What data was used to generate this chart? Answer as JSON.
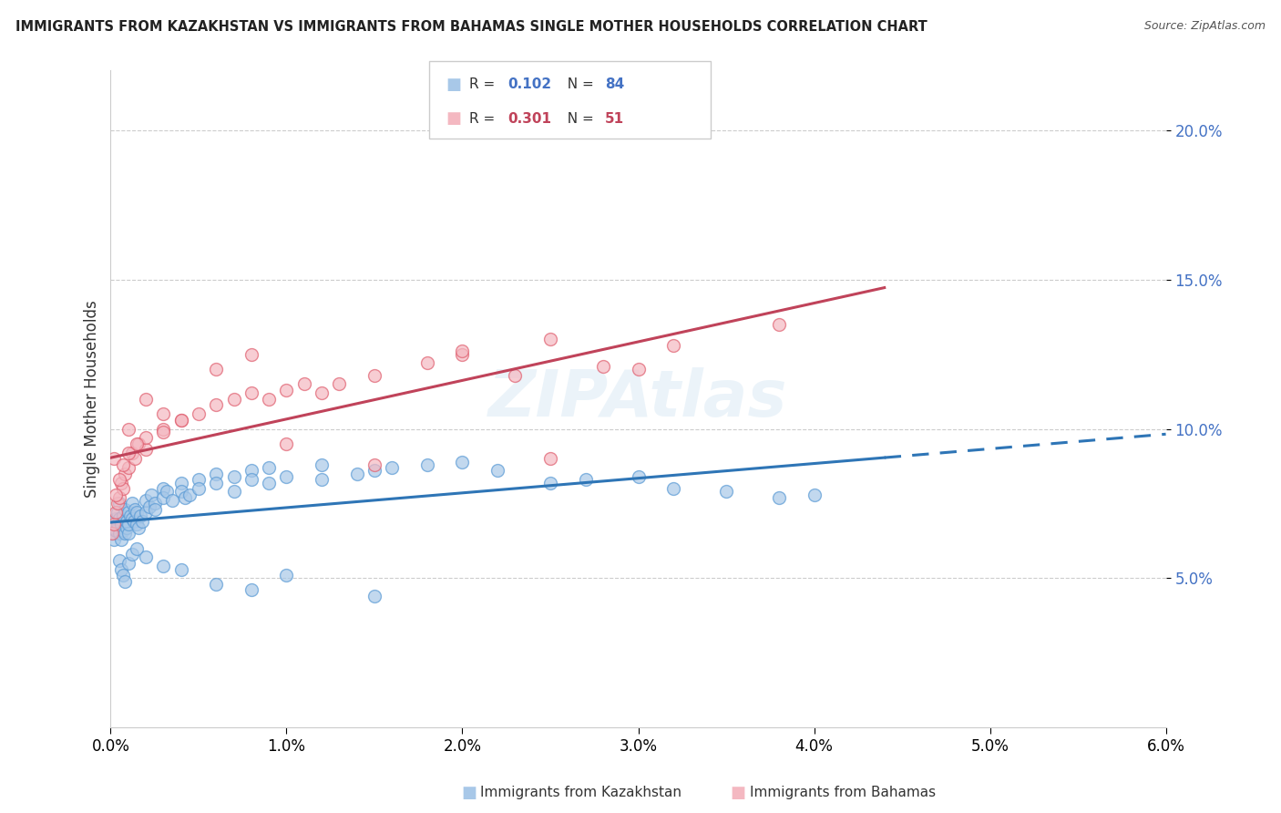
{
  "title": "IMMIGRANTS FROM KAZAKHSTAN VS IMMIGRANTS FROM BAHAMAS SINGLE MOTHER HOUSEHOLDS CORRELATION CHART",
  "source": "Source: ZipAtlas.com",
  "ylabel": "Single Mother Households",
  "series": [
    {
      "name": "Immigrants from Kazakhstan",
      "R": 0.102,
      "N": 84,
      "color": "#a8c8e8",
      "edge_color": "#5b9bd5",
      "line_color": "#2e75b6"
    },
    {
      "name": "Immigrants from Bahamas",
      "R": 0.301,
      "N": 51,
      "color": "#f4b8c1",
      "edge_color": "#e06070",
      "line_color": "#c0435a"
    }
  ],
  "xlim": [
    0.0,
    0.06
  ],
  "ylim": [
    0.0,
    0.22
  ],
  "yticks": [
    0.05,
    0.1,
    0.15,
    0.2
  ],
  "ytick_labels": [
    "5.0%",
    "10.0%",
    "15.0%",
    "20.0%"
  ],
  "xticks": [
    0.0,
    0.01,
    0.02,
    0.03,
    0.04,
    0.05,
    0.06
  ],
  "xtick_labels": [
    "0.0%",
    "1.0%",
    "2.0%",
    "3.0%",
    "4.0%",
    "5.0%",
    "6.0%"
  ],
  "background_color": "#ffffff",
  "grid_color": "#cccccc",
  "watermark": "ZIPAtlas",
  "kaz_line_solid_end": 0.044,
  "kaz_line_dash_start": 0.044,
  "kaz_line_end": 0.06,
  "bah_line_start": 0.0,
  "bah_line_end": 0.044,
  "kazakh_x": [
    0.0001,
    0.0002,
    0.0003,
    0.0003,
    0.0004,
    0.0004,
    0.0005,
    0.0005,
    0.0005,
    0.0006,
    0.0006,
    0.0007,
    0.0007,
    0.0008,
    0.0008,
    0.0009,
    0.0009,
    0.001,
    0.001,
    0.001,
    0.0011,
    0.0012,
    0.0012,
    0.0013,
    0.0014,
    0.0015,
    0.0015,
    0.0016,
    0.0017,
    0.0018,
    0.002,
    0.002,
    0.0022,
    0.0023,
    0.0025,
    0.0025,
    0.003,
    0.003,
    0.0032,
    0.0035,
    0.004,
    0.004,
    0.0042,
    0.0045,
    0.005,
    0.005,
    0.006,
    0.006,
    0.007,
    0.007,
    0.008,
    0.008,
    0.009,
    0.009,
    0.01,
    0.012,
    0.012,
    0.014,
    0.015,
    0.016,
    0.018,
    0.02,
    0.022,
    0.025,
    0.027,
    0.03,
    0.032,
    0.035,
    0.038,
    0.04,
    0.0005,
    0.0006,
    0.0007,
    0.0008,
    0.001,
    0.0012,
    0.0015,
    0.002,
    0.003,
    0.004,
    0.006,
    0.008,
    0.01,
    0.015
  ],
  "kazakh_y": [
    0.065,
    0.063,
    0.07,
    0.066,
    0.068,
    0.072,
    0.065,
    0.07,
    0.075,
    0.063,
    0.068,
    0.071,
    0.066,
    0.065,
    0.073,
    0.067,
    0.069,
    0.065,
    0.068,
    0.072,
    0.071,
    0.07,
    0.075,
    0.069,
    0.073,
    0.068,
    0.072,
    0.067,
    0.071,
    0.069,
    0.072,
    0.076,
    0.074,
    0.078,
    0.075,
    0.073,
    0.08,
    0.077,
    0.079,
    0.076,
    0.082,
    0.079,
    0.077,
    0.078,
    0.083,
    0.08,
    0.085,
    0.082,
    0.079,
    0.084,
    0.086,
    0.083,
    0.082,
    0.087,
    0.084,
    0.083,
    0.088,
    0.085,
    0.086,
    0.087,
    0.088,
    0.089,
    0.086,
    0.082,
    0.083,
    0.084,
    0.08,
    0.079,
    0.077,
    0.078,
    0.056,
    0.053,
    0.051,
    0.049,
    0.055,
    0.058,
    0.06,
    0.057,
    0.054,
    0.053,
    0.048,
    0.046,
    0.051,
    0.044
  ],
  "bahamas_x": [
    0.0001,
    0.0002,
    0.0003,
    0.0004,
    0.0005,
    0.0006,
    0.0007,
    0.0008,
    0.001,
    0.0012,
    0.0014,
    0.0016,
    0.002,
    0.002,
    0.003,
    0.003,
    0.004,
    0.005,
    0.006,
    0.007,
    0.008,
    0.009,
    0.01,
    0.011,
    0.012,
    0.013,
    0.015,
    0.018,
    0.02,
    0.023,
    0.025,
    0.028,
    0.032,
    0.038,
    0.0002,
    0.0003,
    0.0005,
    0.0007,
    0.001,
    0.0015,
    0.002,
    0.003,
    0.004,
    0.006,
    0.008,
    0.01,
    0.015,
    0.02,
    0.025,
    0.03,
    0.001
  ],
  "bahamas_y": [
    0.065,
    0.068,
    0.072,
    0.075,
    0.077,
    0.082,
    0.08,
    0.085,
    0.087,
    0.092,
    0.09,
    0.095,
    0.093,
    0.097,
    0.1,
    0.099,
    0.103,
    0.105,
    0.108,
    0.11,
    0.112,
    0.11,
    0.113,
    0.115,
    0.112,
    0.115,
    0.118,
    0.122,
    0.125,
    0.118,
    0.13,
    0.121,
    0.128,
    0.135,
    0.09,
    0.078,
    0.083,
    0.088,
    0.1,
    0.095,
    0.11,
    0.105,
    0.103,
    0.12,
    0.125,
    0.095,
    0.088,
    0.126,
    0.09,
    0.12,
    0.092
  ]
}
